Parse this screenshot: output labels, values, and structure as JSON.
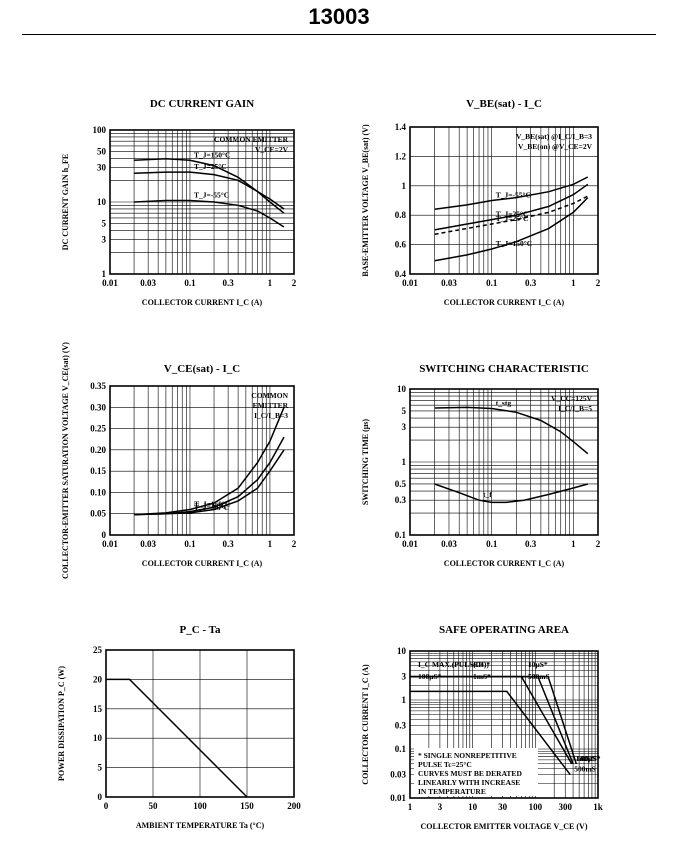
{
  "header": {
    "title": "13003"
  },
  "chart_data": [
    {
      "id": "hfe",
      "type": "line",
      "title": "DC CURRENT GAIN",
      "xlabel": "COLLECTOR CURRENT I_C (A)",
      "ylabel": "DC CURRENT GAIN h_FE",
      "xscale": "log",
      "yscale": "log",
      "xlim": [
        0.01,
        2
      ],
      "ylim": [
        1,
        100
      ],
      "xticks": [
        "0.01",
        "0.03",
        "0.1",
        "0.3",
        "1",
        "2"
      ],
      "yticks": [
        "1",
        "3",
        "5",
        "10",
        "30",
        "50",
        "100"
      ],
      "legend": [
        "COMMON EMITTER",
        "V_CE=2V"
      ],
      "series": [
        {
          "name": "T_J=150°C",
          "x": [
            0.02,
            0.05,
            0.1,
            0.2,
            0.4,
            0.7,
            1,
            1.5
          ],
          "y": [
            38,
            40,
            38,
            32,
            22,
            14,
            10,
            7
          ]
        },
        {
          "name": "T_J=25°C",
          "x": [
            0.02,
            0.05,
            0.1,
            0.2,
            0.4,
            0.7,
            1,
            1.5
          ],
          "y": [
            25,
            26,
            26,
            24,
            20,
            14,
            11,
            8
          ]
        },
        {
          "name": "T_J=-55°C",
          "x": [
            0.02,
            0.05,
            0.1,
            0.2,
            0.4,
            0.7,
            1,
            1.5
          ],
          "y": [
            10,
            10.5,
            10.5,
            10,
            9,
            7.5,
            6,
            4.5
          ]
        }
      ]
    },
    {
      "id": "vbe",
      "type": "line",
      "title": "V_BE(sat) - I_C",
      "xlabel": "COLLECTOR CURRENT I_C (A)",
      "ylabel": "BASE-EMITTER VOLTAGE V_BE(sat) (V)",
      "xscale": "log",
      "yscale": "linear",
      "xlim": [
        0.01,
        2
      ],
      "ylim": [
        0.4,
        1.4
      ],
      "xticks": [
        "0.01",
        "0.03",
        "0.1",
        "0.3",
        "1",
        "2"
      ],
      "yticks": [
        "0.4",
        "0.6",
        "0.8",
        "1",
        "1.2",
        "1.4"
      ],
      "legend": [
        "V_BE(sat) @I_C/I_B=3",
        "V_BE(on) @V_CE=2V"
      ],
      "series": [
        {
          "name": "T_J=-55°C",
          "style": "solid",
          "x": [
            0.02,
            0.05,
            0.1,
            0.2,
            0.5,
            1,
            1.5
          ],
          "y": [
            0.84,
            0.87,
            0.9,
            0.92,
            0.96,
            1.01,
            1.06
          ]
        },
        {
          "name": "T_J=25°C",
          "style": "solid",
          "x": [
            0.02,
            0.05,
            0.1,
            0.2,
            0.5,
            1,
            1.5
          ],
          "y": [
            0.7,
            0.74,
            0.77,
            0.8,
            0.86,
            0.94,
            1.01
          ]
        },
        {
          "name": "T_J=25°C",
          "style": "dashed",
          "x": [
            0.02,
            0.05,
            0.1,
            0.2,
            0.5,
            1,
            1.5
          ],
          "y": [
            0.67,
            0.71,
            0.74,
            0.77,
            0.82,
            0.88,
            0.93
          ]
        },
        {
          "name": "T_J=150°C",
          "style": "solid",
          "x": [
            0.02,
            0.05,
            0.1,
            0.2,
            0.5,
            1,
            1.5
          ],
          "y": [
            0.49,
            0.53,
            0.57,
            0.62,
            0.71,
            0.82,
            0.92
          ]
        }
      ]
    },
    {
      "id": "vcesat",
      "type": "line",
      "title": "V_CE(sat) - I_C",
      "xlabel": "COLLECTOR CURRENT I_C (A)",
      "ylabel": "COLLECTOR-EMITTER SATURATION VOLTAGE V_CE(sat) (V)",
      "xscale": "log",
      "yscale": "linear",
      "xlim": [
        0.01,
        2
      ],
      "ylim": [
        0,
        0.35
      ],
      "xticks": [
        "0.01",
        "0.03",
        "0.1",
        "0.3",
        "1",
        "2"
      ],
      "yticks": [
        "0",
        "0.05",
        "0.10",
        "0.15",
        "0.20",
        "0.25",
        "0.30",
        "0.35"
      ],
      "legend": [
        "COMMON",
        "EMITTER",
        "I_C/I_B=3"
      ],
      "series": [
        {
          "name": "T_J=150°C",
          "x": [
            0.02,
            0.05,
            0.1,
            0.2,
            0.4,
            0.7,
            1,
            1.5
          ],
          "y": [
            0.048,
            0.052,
            0.06,
            0.075,
            0.11,
            0.17,
            0.22,
            0.3
          ]
        },
        {
          "name": "T_J=25°C",
          "x": [
            0.02,
            0.05,
            0.1,
            0.2,
            0.4,
            0.7,
            1,
            1.5
          ],
          "y": [
            0.048,
            0.05,
            0.055,
            0.065,
            0.09,
            0.13,
            0.17,
            0.23
          ]
        },
        {
          "name": "T_J=-55°C",
          "x": [
            0.02,
            0.05,
            0.1,
            0.2,
            0.4,
            0.7,
            1,
            1.5
          ],
          "y": [
            0.048,
            0.05,
            0.052,
            0.06,
            0.08,
            0.11,
            0.15,
            0.2
          ]
        }
      ]
    },
    {
      "id": "switching",
      "type": "line",
      "title": "SWITCHING CHARACTERISTIC",
      "xlabel": "COLLECTOR CURRENT I_C (A)",
      "ylabel": "SWITCHING TIME (μs)",
      "xscale": "log",
      "yscale": "log",
      "xlim": [
        0.01,
        2
      ],
      "ylim": [
        0.1,
        10
      ],
      "xticks": [
        "0.01",
        "0.03",
        "0.1",
        "0.3",
        "1",
        "2"
      ],
      "yticks": [
        "0.1",
        "0.3",
        "0.5",
        "1",
        "3",
        "5",
        "10"
      ],
      "legend": [
        "V_CC=125V",
        "I_C/I_B=5"
      ],
      "series": [
        {
          "name": "t_stg",
          "x": [
            0.02,
            0.05,
            0.1,
            0.2,
            0.4,
            0.7,
            1,
            1.5
          ],
          "y": [
            5.5,
            5.6,
            5.4,
            4.8,
            3.7,
            2.6,
            1.9,
            1.3
          ]
        },
        {
          "name": "t_f",
          "x": [
            0.02,
            0.04,
            0.07,
            0.1,
            0.15,
            0.25,
            0.5,
            1,
            1.5
          ],
          "y": [
            0.5,
            0.38,
            0.3,
            0.28,
            0.28,
            0.3,
            0.36,
            0.44,
            0.5
          ]
        }
      ]
    },
    {
      "id": "pcta",
      "type": "line",
      "title": "P_C - Ta",
      "xlabel": "AMBIENT TEMPERATURE Ta (°C)",
      "ylabel": "POWER DISSIPATION P_C (W)",
      "xscale": "linear",
      "yscale": "linear",
      "xlim": [
        0,
        200
      ],
      "ylim": [
        0,
        25
      ],
      "xticks": [
        "0",
        "50",
        "100",
        "150",
        "200"
      ],
      "yticks": [
        "0",
        "5",
        "10",
        "15",
        "20",
        "25"
      ],
      "series": [
        {
          "x": [
            0,
            25,
            150
          ],
          "y": [
            20,
            20,
            0
          ]
        }
      ]
    },
    {
      "id": "soa",
      "type": "line",
      "title": "SAFE OPERATING AREA",
      "xlabel": "COLLECTOR EMITTER VOLTAGE V_CE (V)",
      "ylabel": "COLLECTOR CURRENT I_C (A)",
      "xscale": "log",
      "yscale": "log",
      "xlim": [
        1,
        1000
      ],
      "ylim": [
        0.01,
        10
      ],
      "xticks": [
        "1",
        "3",
        "10",
        "30",
        "100",
        "300",
        "1k"
      ],
      "yticks": [
        "0.01",
        "0.03",
        "0.1",
        "0.3",
        "1",
        "3",
        "10"
      ],
      "labels": [
        "I_C MAX.(PULSED)*",
        "(DC)",
        "10μS*",
        "100μS*",
        "1mS*",
        "500mS"
      ],
      "notes": [
        "* SINGLE NONREPETITIVE",
        "PULSE Tc=25°C",
        "CURVES MUST BE DERATED",
        "LINEARLY WITH INCREASE",
        "IN TEMPERATURE"
      ],
      "series": [
        {
          "name": "10μS*",
          "x": [
            1,
            160,
            450
          ],
          "y": [
            3,
            3,
            0.05
          ]
        },
        {
          "name": "100μS*",
          "x": [
            1,
            110,
            400
          ],
          "y": [
            3,
            3,
            0.05
          ]
        },
        {
          "name": "1mS*",
          "x": [
            1,
            60,
            380
          ],
          "y": [
            3,
            3,
            0.05
          ]
        },
        {
          "name": "500mS",
          "x": [
            1,
            35,
            360
          ],
          "y": [
            1.5,
            1.5,
            0.03
          ]
        }
      ]
    }
  ]
}
